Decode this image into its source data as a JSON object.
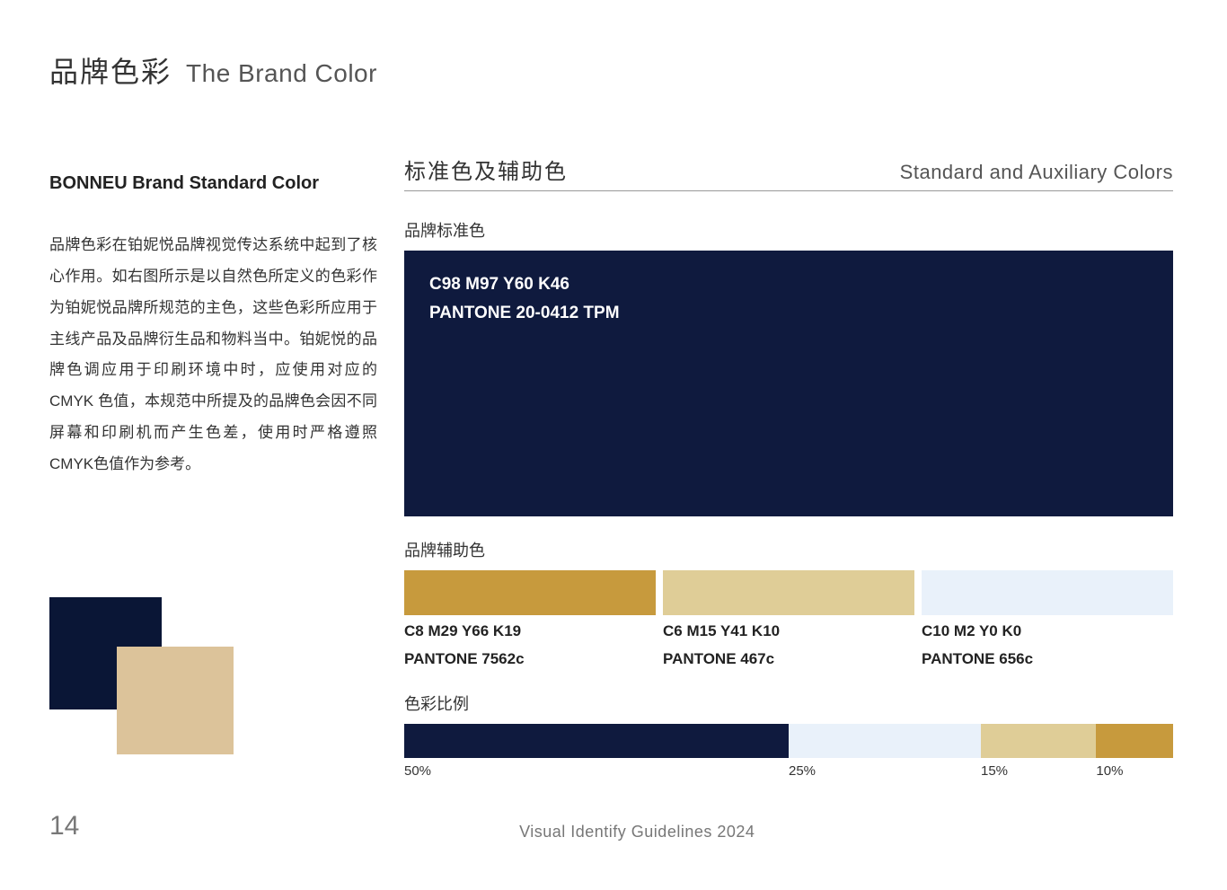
{
  "title": {
    "cn": "品牌色彩",
    "en": "The Brand Color"
  },
  "left": {
    "subtitle": "BONNEU  Brand Standard Color",
    "body": "品牌色彩在铂妮悦品牌视觉传达系统中起到了核心作用。如右图所示是以自然色所定义的色彩作为铂妮悦品牌所规范的主色，这些色彩所应用于主线产品及品牌衍生品和物料当中。铂妮悦的品牌色调应用于印刷环境中时，应使用对应的CMYK 色值，本规范中所提及的品牌色会因不同屏幕和印刷机而产生色差，使用时严格遵照CMYK色值作为参考。",
    "swatch_back_color": "#0a1636",
    "swatch_front_color": "#dcc39a"
  },
  "right": {
    "heading": {
      "cn": "标准色及辅助色",
      "en": "Standard and Auxiliary Colors"
    },
    "primary_label": "品牌标准色",
    "primary": {
      "color": "#0f1a3e",
      "cmyk": "C98 M97 Y60 K46",
      "pantone": "PANTONE 20-0412 TPM"
    },
    "aux_label": "品牌辅助色",
    "aux": [
      {
        "color": "#c79a3d",
        "cmyk": "C8 M29 Y66 K19",
        "pantone": "PANTONE 7562c"
      },
      {
        "color": "#dfcd97",
        "cmyk": "C6 M15 Y41 K10",
        "pantone": "PANTONE 467c"
      },
      {
        "color": "#e9f1fa",
        "cmyk": "C10 M2 Y0 K0",
        "pantone": "PANTONE 656c"
      }
    ],
    "ratio_label": "色彩比例",
    "ratio": [
      {
        "color": "#0f1a3e",
        "pct": 50,
        "label": "50%"
      },
      {
        "color": "#e9f1fa",
        "pct": 25,
        "label": "25%"
      },
      {
        "color": "#dfcd97",
        "pct": 15,
        "label": "15%"
      },
      {
        "color": "#c79a3d",
        "pct": 10,
        "label": "10%"
      }
    ]
  },
  "page_number": "14",
  "footer": "Visual Identify Guidelines 2024"
}
